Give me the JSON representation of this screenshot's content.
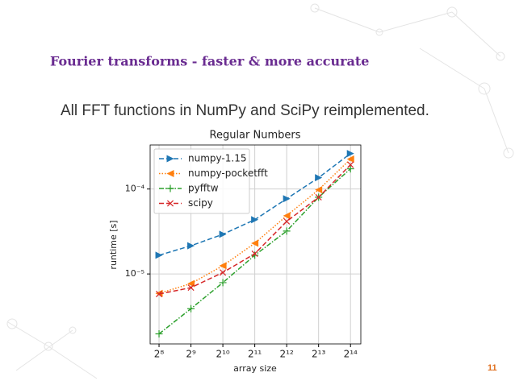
{
  "slide": {
    "title": "Fourier transforms - faster & more accurate",
    "text": "All FFT functions in NumPy and SciPy reimplemented.",
    "page_number": "11"
  },
  "chart_data": {
    "type": "line",
    "title": "Regular Numbers",
    "x_label": "array size",
    "y_label": "runtime [s]",
    "x": [
      256,
      512,
      1024,
      2048,
      4096,
      8192,
      16384
    ],
    "xscale": "log",
    "yscale": "log",
    "xlim": [
      211,
      20500
    ],
    "ylim": [
      1.5e-06,
      0.00033
    ],
    "xticks": [
      {
        "value": 256,
        "label": "2⁸"
      },
      {
        "value": 512,
        "label": "2⁹"
      },
      {
        "value": 1024,
        "label": "2¹⁰"
      },
      {
        "value": 2048,
        "label": "2¹¹"
      },
      {
        "value": 4096,
        "label": "2¹²"
      },
      {
        "value": 8192,
        "label": "2¹³"
      },
      {
        "value": 16384,
        "label": "2¹⁴"
      }
    ],
    "yticks": [
      {
        "value": 1e-05,
        "label": "10⁻⁵"
      },
      {
        "value": 0.0001,
        "label": "10⁻⁴"
      }
    ],
    "grid": true,
    "legend": "upper left",
    "series": [
      {
        "name": "numpy-1.15",
        "color": "#1f77b4",
        "dash": "dashed",
        "marker": "triangle-right",
        "values": [
          1.66e-05,
          2.15e-05,
          2.93e-05,
          4.35e-05,
          7.69e-05,
          0.000136,
          0.000262
        ]
      },
      {
        "name": "numpy-pocketfft",
        "color": "#ff7f0e",
        "dash": "dotted",
        "marker": "triangle-left",
        "values": [
          5.9e-06,
          7.7e-06,
          1.25e-05,
          2.3e-05,
          4.85e-05,
          9.8e-05,
          0.000225
        ]
      },
      {
        "name": "pyfftw",
        "color": "#2ca02c",
        "dash": "dashdot",
        "marker": "plus",
        "values": [
          1.97e-06,
          3.9e-06,
          7.9e-06,
          1.66e-05,
          3.2e-05,
          8e-05,
          0.000173
        ]
      },
      {
        "name": "scipy",
        "color": "#d62728",
        "dash": "dashed",
        "marker": "x",
        "values": [
          5.8e-06,
          6.9e-06,
          1.04e-05,
          1.73e-05,
          4.16e-05,
          8e-05,
          0.000193
        ]
      }
    ]
  }
}
